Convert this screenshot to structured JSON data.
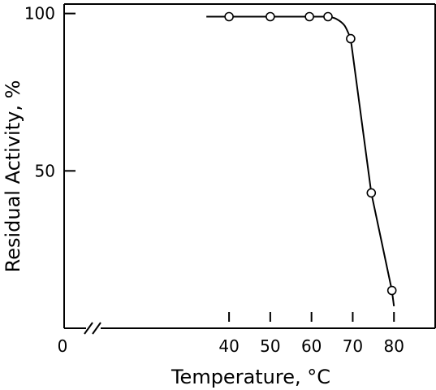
{
  "chart_data": {
    "type": "line",
    "title": "",
    "xlabel": "Temperature, °C",
    "ylabel": "Residual Activity, %",
    "xlim": [
      0,
      90
    ],
    "ylim": [
      0,
      103
    ],
    "x_axis_break": true,
    "x_tick_origin_label": "0",
    "x_ticks": [
      40,
      50,
      60,
      70,
      80
    ],
    "x_tick_labels": [
      "40",
      "50",
      "60",
      "70",
      "80"
    ],
    "y_ticks": [
      50,
      100
    ],
    "y_tick_labels": [
      "50",
      "100"
    ],
    "grid": false,
    "legend": "none",
    "colors": {
      "line": "#000000",
      "marker_fill": "#ffffff"
    },
    "series": [
      {
        "marker": "open-circle",
        "points": [
          {
            "x": 40.0,
            "y": 99
          },
          {
            "x": 50.0,
            "y": 99
          },
          {
            "x": 59.5,
            "y": 99
          },
          {
            "x": 64.0,
            "y": 99
          },
          {
            "x": 69.5,
            "y": 92
          },
          {
            "x": 74.5,
            "y": 43
          },
          {
            "x": 79.5,
            "y": 12
          }
        ],
        "curve": [
          {
            "x": 34.5,
            "y": 99
          },
          {
            "x": 64.0,
            "y": 99
          },
          {
            "x": 66.0,
            "y": 98.3
          },
          {
            "x": 68.0,
            "y": 96.2
          },
          {
            "x": 69.5,
            "y": 92
          },
          {
            "x": 74.5,
            "y": 43
          },
          {
            "x": 79.5,
            "y": 12
          },
          {
            "x": 80.0,
            "y": 7
          }
        ]
      }
    ]
  }
}
